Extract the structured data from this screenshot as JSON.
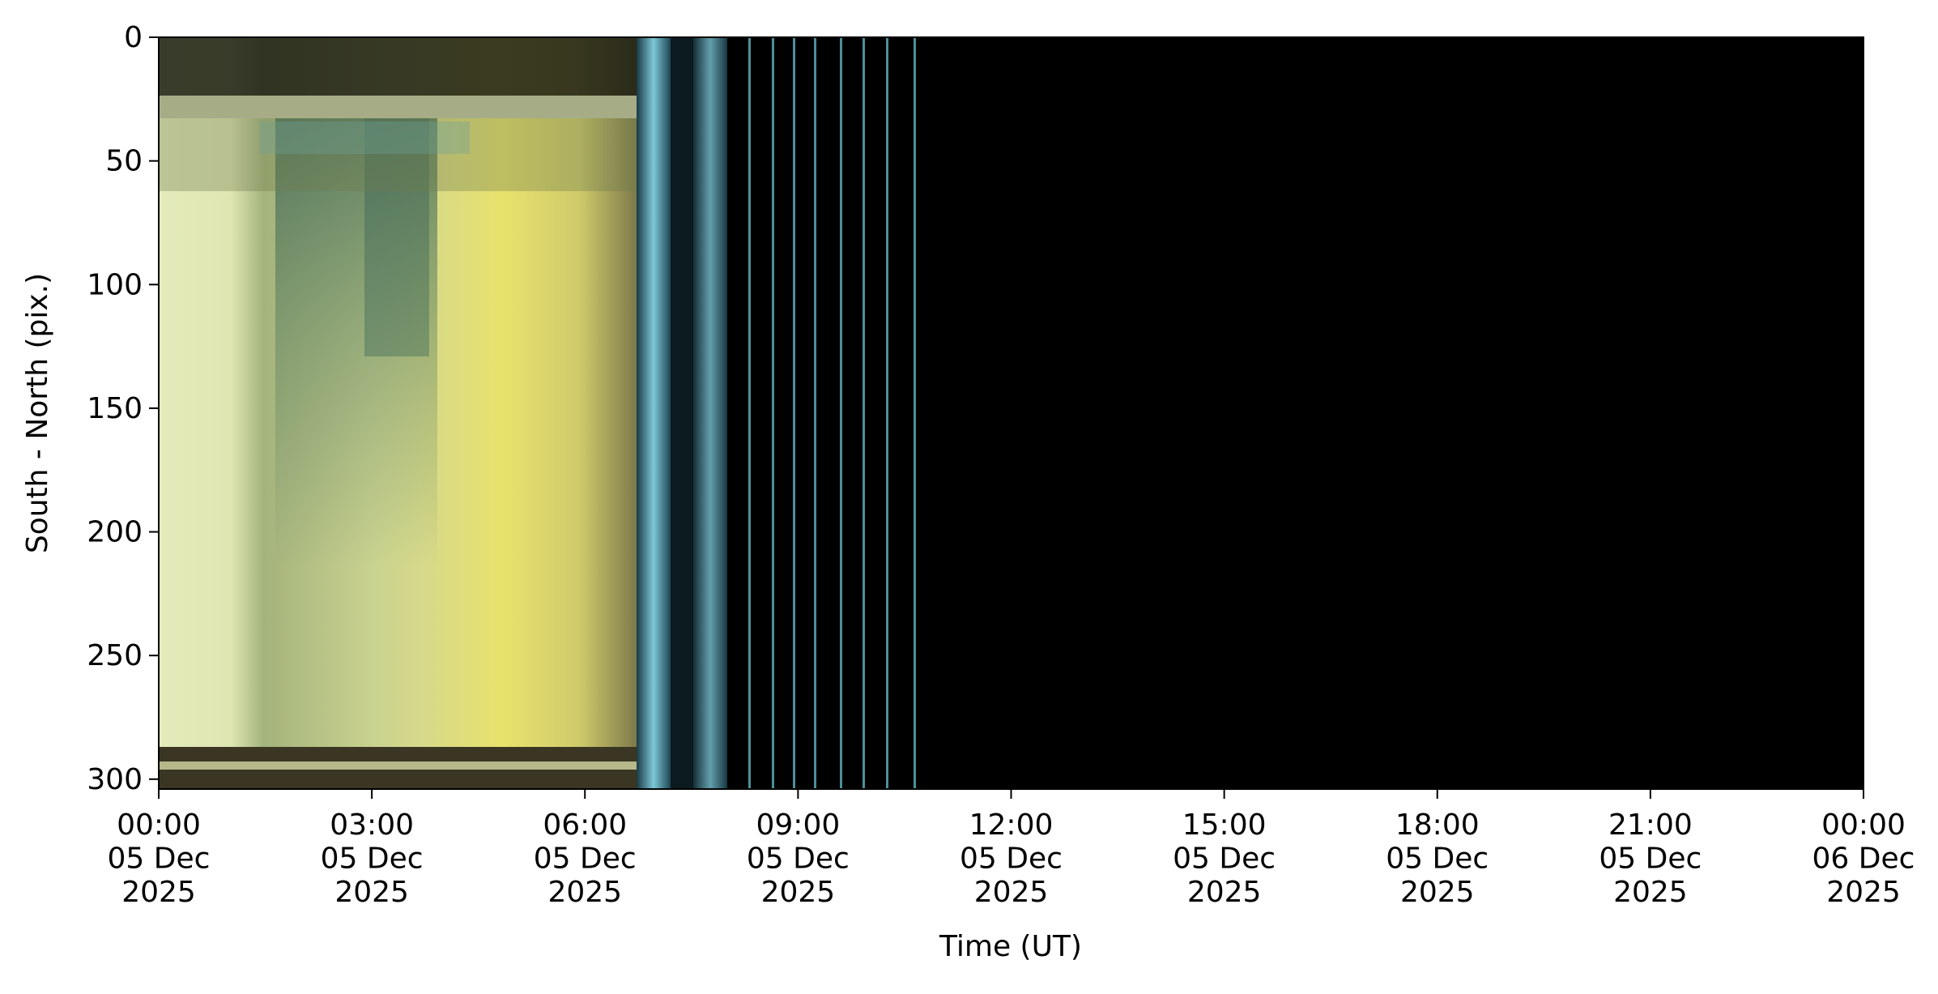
{
  "chart_data": {
    "type": "keogram",
    "xlabel": "Time (UT)",
    "ylabel": "South - North (pix.)",
    "xlim": [
      "2025-12-05T00:00",
      "2025-12-06T00:00"
    ],
    "xticks": [
      {
        "value": "2025-12-05T00:00",
        "label": "00:00\n05 Dec\n2025"
      },
      {
        "value": "2025-12-05T03:00",
        "label": "03:00\n05 Dec\n2025"
      },
      {
        "value": "2025-12-05T06:00",
        "label": "06:00\n05 Dec\n2025"
      },
      {
        "value": "2025-12-05T09:00",
        "label": "09:00\n05 Dec\n2025"
      },
      {
        "value": "2025-12-05T12:00",
        "label": "12:00\n05 Dec\n2025"
      },
      {
        "value": "2025-12-05T15:00",
        "label": "15:00\n05 Dec\n2025"
      },
      {
        "value": "2025-12-05T18:00",
        "label": "18:00\n05 Dec\n2025"
      },
      {
        "value": "2025-12-05T21:00",
        "label": "21:00\n05 Dec\n2025"
      },
      {
        "value": "2025-12-06T00:00",
        "label": "00:00\n06 Dec\n2025"
      }
    ],
    "ylim": [
      304,
      0
    ],
    "yticks": [
      0,
      50,
      100,
      150,
      200,
      250,
      300
    ]
  }
}
